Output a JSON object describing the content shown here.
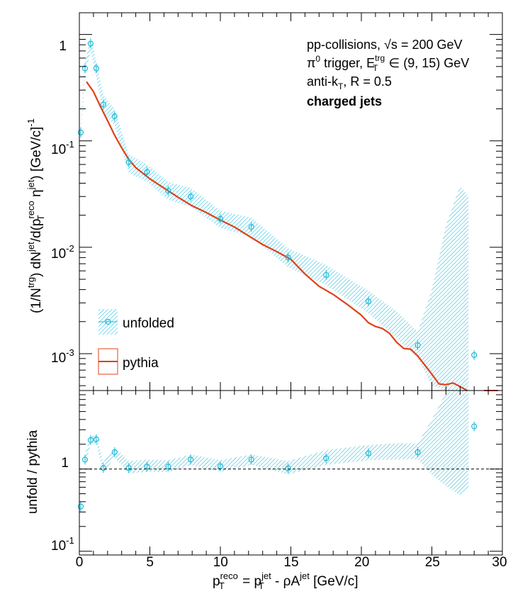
{
  "colors": {
    "unfolded": "#1fb9d8",
    "pythia": "#e0401a",
    "axis": "#000000",
    "reference_line": "#000000"
  },
  "chart_data": [
    {
      "type": "line",
      "panel": "top",
      "yscale": "log",
      "xlim": [
        0,
        30
      ],
      "ylim": [
        0.00045,
        1.6
      ],
      "ylabel_parts": {
        "a": "(1/N",
        "a_sup": "trg",
        "b": ") dN",
        "b_sup": "jet",
        "c": "/d(p",
        "c_sup": "reco",
        "c_sub": "T",
        "d": " η",
        "d_sup": "jet",
        "e": ") [GeV/c]",
        "e_sup": "-1"
      },
      "y_ticks": [
        {
          "value": 0.001,
          "base": "10",
          "exp": "-3"
        },
        {
          "value": 0.01,
          "base": "10",
          "exp": "-2"
        },
        {
          "value": 0.1,
          "base": "10",
          "exp": "-1"
        },
        {
          "value": 1,
          "label": "1"
        }
      ],
      "annotations": {
        "line1_pre": "pp-collisions, ",
        "line1_sqrt": "√s",
        "line1_post": " = 200 GeV",
        "line2_pi": "π",
        "line2_pi_sup": "0",
        "line2_mid": " trigger, E",
        "line2_E_sup": "trg",
        "line2_E_sub": "T",
        "line2_post": " ∈ (9, 15) GeV",
        "line3_pre": "anti-k",
        "line3_sub": "T",
        "line3_post": ", R = 0.5",
        "line4": "charged jets"
      },
      "legend": {
        "position": "bottom-left",
        "entries": [
          "unfolded",
          "pythia"
        ]
      },
      "series": [
        {
          "name": "unfolded",
          "style": "markers-with-hatched-band",
          "points": [
            {
              "x": 0.1,
              "y": 0.12
            },
            {
              "x": 0.4,
              "y": 0.48
            },
            {
              "x": 0.8,
              "y": 0.82
            },
            {
              "x": 1.2,
              "y": 0.48
            },
            {
              "x": 1.7,
              "y": 0.22
            },
            {
              "x": 2.5,
              "y": 0.17
            },
            {
              "x": 3.5,
              "y": 0.063
            },
            {
              "x": 4.8,
              "y": 0.051
            },
            {
              "x": 6.3,
              "y": 0.034
            },
            {
              "x": 7.9,
              "y": 0.03
            },
            {
              "x": 10.0,
              "y": 0.0185
            },
            {
              "x": 12.2,
              "y": 0.0155
            },
            {
              "x": 14.8,
              "y": 0.008
            },
            {
              "x": 17.5,
              "y": 0.0055
            },
            {
              "x": 20.5,
              "y": 0.0031
            },
            {
              "x": 24.0,
              "y": 0.0012
            },
            {
              "x": 28.0,
              "y": 0.00097
            }
          ],
          "band": {
            "x": [
              0.1,
              0.4,
              0.8,
              1.2,
              1.7,
              2.5,
              3.5,
              4.8,
              6.3,
              7.9,
              10.0,
              12.2,
              14.8,
              17.5,
              20.5,
              22.5,
              24.0,
              25.0,
              26.0,
              27.0,
              27.6
            ],
            "upper": [
              0.13,
              0.55,
              0.95,
              0.55,
              0.27,
              0.2,
              0.075,
              0.06,
              0.041,
              0.036,
              0.022,
              0.019,
              0.0098,
              0.0068,
              0.0039,
              0.0025,
              0.0016,
              0.004,
              0.016,
              0.038,
              0.03
            ],
            "lower": [
              0.11,
              0.42,
              0.7,
              0.4,
              0.18,
              0.14,
              0.05,
              0.041,
              0.028,
              0.024,
              0.0152,
              0.0125,
              0.0065,
              0.0044,
              0.0024,
              0.0014,
              0.0009,
              0.0005,
              0.00045,
              0.00045,
              0.00045
            ]
          }
        },
        {
          "name": "pythia",
          "style": "line",
          "points": [
            {
              "x": 0.5,
              "y": 0.36
            },
            {
              "x": 1.0,
              "y": 0.29
            },
            {
              "x": 1.5,
              "y": 0.21
            },
            {
              "x": 2.0,
              "y": 0.155
            },
            {
              "x": 2.5,
              "y": 0.113
            },
            {
              "x": 3.0,
              "y": 0.086
            },
            {
              "x": 3.5,
              "y": 0.067
            },
            {
              "x": 4.0,
              "y": 0.056
            },
            {
              "x": 5.0,
              "y": 0.044
            },
            {
              "x": 6.0,
              "y": 0.036
            },
            {
              "x": 7.0,
              "y": 0.0295
            },
            {
              "x": 8.0,
              "y": 0.0245
            },
            {
              "x": 9.0,
              "y": 0.0212
            },
            {
              "x": 10.0,
              "y": 0.018
            },
            {
              "x": 11.0,
              "y": 0.0155
            },
            {
              "x": 12.0,
              "y": 0.0128
            },
            {
              "x": 13.0,
              "y": 0.0106
            },
            {
              "x": 14.0,
              "y": 0.0091
            },
            {
              "x": 15.0,
              "y": 0.0077
            },
            {
              "x": 16.0,
              "y": 0.0056
            },
            {
              "x": 17.0,
              "y": 0.0043
            },
            {
              "x": 18.0,
              "y": 0.0036
            },
            {
              "x": 19.0,
              "y": 0.0029
            },
            {
              "x": 20.0,
              "y": 0.0023
            },
            {
              "x": 20.5,
              "y": 0.00195
            },
            {
              "x": 21.0,
              "y": 0.0018
            },
            {
              "x": 21.5,
              "y": 0.00172
            },
            {
              "x": 22.0,
              "y": 0.00155
            },
            {
              "x": 22.5,
              "y": 0.00128
            },
            {
              "x": 23.0,
              "y": 0.00112
            },
            {
              "x": 23.5,
              "y": 0.0011
            },
            {
              "x": 24.0,
              "y": 0.00095
            },
            {
              "x": 24.5,
              "y": 0.00078
            },
            {
              "x": 25.0,
              "y": 0.00064
            },
            {
              "x": 25.5,
              "y": 0.00052
            },
            {
              "x": 26.0,
              "y": 0.00051
            },
            {
              "x": 26.5,
              "y": 0.00053
            },
            {
              "x": 27.0,
              "y": 0.00049
            },
            {
              "x": 27.5,
              "y": 0.00045
            }
          ],
          "segments": [
            {
              "x0": 28.7,
              "x1": 29.7,
              "y": 0.00045
            }
          ]
        }
      ]
    },
    {
      "type": "line",
      "panel": "bottom",
      "yscale": "log",
      "xlim": [
        0,
        30
      ],
      "ylim": [
        0.09,
        9
      ],
      "ylabel": "unfold / pythia",
      "xlabel_parts": {
        "p1": "p",
        "p1_sup": "reco",
        "p1_sub": "T",
        "eq": " = p",
        "p2_sup": "jet",
        "p2_sub": "T",
        "minus": " - ρA",
        "A_sup": "jet",
        "units": " [GeV/c]"
      },
      "x_ticks": [
        0,
        5,
        10,
        15,
        20,
        25,
        30
      ],
      "y_ticks": [
        {
          "value": 0.1,
          "base": "10",
          "exp": "-1"
        },
        {
          "value": 1,
          "label": "1"
        }
      ],
      "reference_line": {
        "y": 1,
        "style": "dashed"
      },
      "series": [
        {
          "name": "unfolded",
          "style": "markers-with-hatched-band",
          "points": [
            {
              "x": 0.1,
              "y": 0.35
            },
            {
              "x": 0.4,
              "y": 1.3
            },
            {
              "x": 0.8,
              "y": 2.25
            },
            {
              "x": 1.2,
              "y": 2.3
            },
            {
              "x": 1.7,
              "y": 1.03
            },
            {
              "x": 2.5,
              "y": 1.6
            },
            {
              "x": 3.5,
              "y": 1.03
            },
            {
              "x": 4.8,
              "y": 1.07
            },
            {
              "x": 6.3,
              "y": 1.07
            },
            {
              "x": 7.9,
              "y": 1.3
            },
            {
              "x": 10.0,
              "y": 1.08
            },
            {
              "x": 12.2,
              "y": 1.3
            },
            {
              "x": 14.8,
              "y": 1.02
            },
            {
              "x": 17.5,
              "y": 1.35
            },
            {
              "x": 20.5,
              "y": 1.55
            },
            {
              "x": 24.0,
              "y": 1.6
            },
            {
              "x": 28.0,
              "y": 3.3
            }
          ],
          "band": {
            "x": [
              0.4,
              0.8,
              1.2,
              1.7,
              2.5,
              3.5,
              4.8,
              6.3,
              7.9,
              10.0,
              12.2,
              14.8,
              17.5,
              20.5,
              22.5,
              24.0,
              25.0,
              26.0,
              27.0,
              27.6
            ],
            "upper": [
              1.5,
              2.5,
              2.55,
              1.2,
              1.85,
              1.25,
              1.3,
              1.28,
              1.5,
              1.28,
              1.5,
              1.25,
              1.7,
              1.95,
              2.05,
              2.05,
              4.0,
              8.5,
              9.0,
              9.0
            ],
            "lower": [
              1.1,
              2.0,
              2.05,
              0.9,
              1.38,
              0.88,
              0.92,
              0.92,
              1.12,
              0.92,
              1.12,
              0.86,
              1.12,
              1.28,
              1.3,
              1.32,
              0.85,
              0.62,
              0.48,
              0.6
            ]
          }
        }
      ]
    }
  ]
}
